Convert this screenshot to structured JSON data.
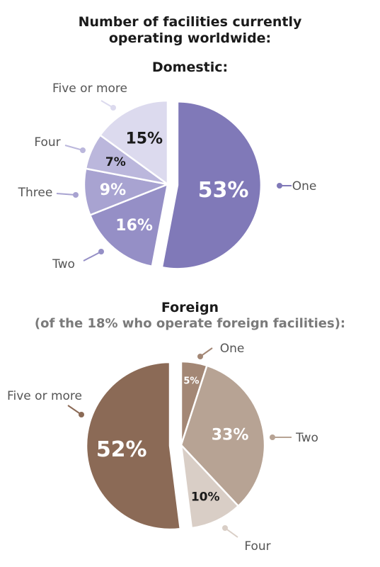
{
  "title_line1": "Number of facilities currently",
  "title_line2": "operating worldwide:",
  "chart_data": [
    {
      "type": "pie",
      "title": "Domestic:",
      "subtitle": "",
      "slices": [
        {
          "label": "One",
          "value": 53,
          "display": "53%",
          "color": "#8079b8",
          "text_color": "#ffffff"
        },
        {
          "label": "Two",
          "value": 16,
          "display": "16%",
          "color": "#958fc6",
          "text_color": "#ffffff"
        },
        {
          "label": "Three",
          "value": 9,
          "display": "9%",
          "color": "#a8a3d1",
          "text_color": "#ffffff"
        },
        {
          "label": "Four",
          "value": 7,
          "display": "7%",
          "color": "#bbb7dc",
          "text_color": "#1a1a1a"
        },
        {
          "label": "Five or more",
          "value": 15,
          "display": "15%",
          "color": "#dcdaee",
          "text_color": "#1a1a1a"
        }
      ],
      "exploded": "One"
    },
    {
      "type": "pie",
      "title": "Foreign",
      "subtitle": "(of the 18% who operate foreign facilities):",
      "slices": [
        {
          "label": "One",
          "value": 5,
          "display": "5%",
          "color": "#a38775",
          "text_color": "#ffffff"
        },
        {
          "label": "Two",
          "value": 33,
          "display": "33%",
          "color": "#b7a394",
          "text_color": "#ffffff"
        },
        {
          "label": "Four",
          "value": 10,
          "display": "10%",
          "color": "#d9cec6",
          "text_color": "#1a1a1a"
        },
        {
          "label": "Five or more",
          "value": 52,
          "display": "52%",
          "color": "#8b6a56",
          "text_color": "#ffffff"
        }
      ],
      "exploded": "Five or more"
    }
  ]
}
